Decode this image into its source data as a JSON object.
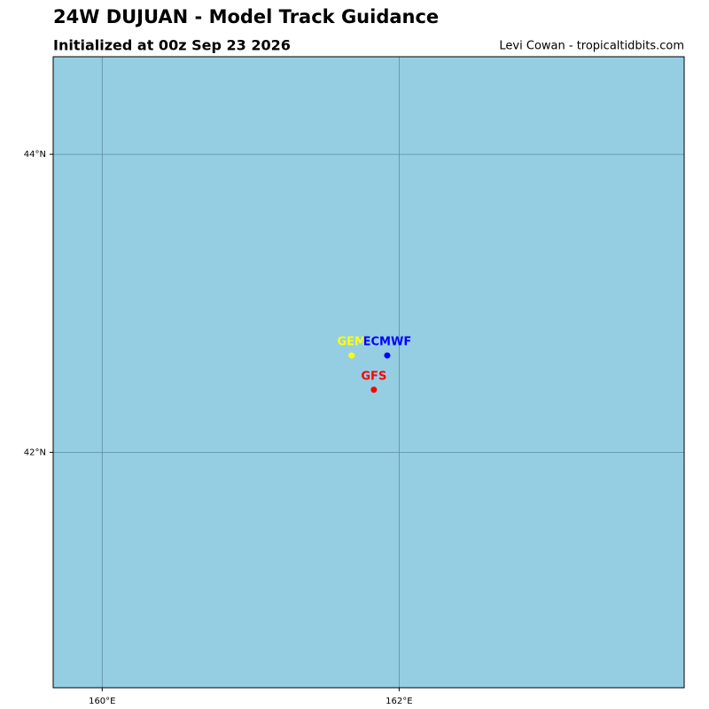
{
  "chart_data": {
    "type": "scatter",
    "title": "24W DUJUAN - Model Track Guidance",
    "subtitle": "Initialized at 00z Sep 23 2026",
    "credit": "Levi Cowan - tropicaltidbits.com",
    "background": "#95cee3",
    "grid": true,
    "xlim": [
      159.67,
      163.92
    ],
    "ylim": [
      40.42,
      44.655
    ],
    "xticks": [
      {
        "value": 160,
        "label": "160°E"
      },
      {
        "value": 162,
        "label": "162°E"
      }
    ],
    "yticks": [
      {
        "value": 42,
        "label": "42°N"
      },
      {
        "value": 44,
        "label": "44°N"
      }
    ],
    "series": [
      {
        "name": "GEM",
        "color": "#ffff00",
        "x": [
          161.68
        ],
        "values": [
          42.65
        ]
      },
      {
        "name": "ECMWF",
        "color": "#0000ff",
        "x": [
          161.92
        ],
        "values": [
          42.65
        ]
      },
      {
        "name": "GFS",
        "color": "#ff0000",
        "x": [
          161.83
        ],
        "values": [
          42.42
        ]
      }
    ]
  }
}
